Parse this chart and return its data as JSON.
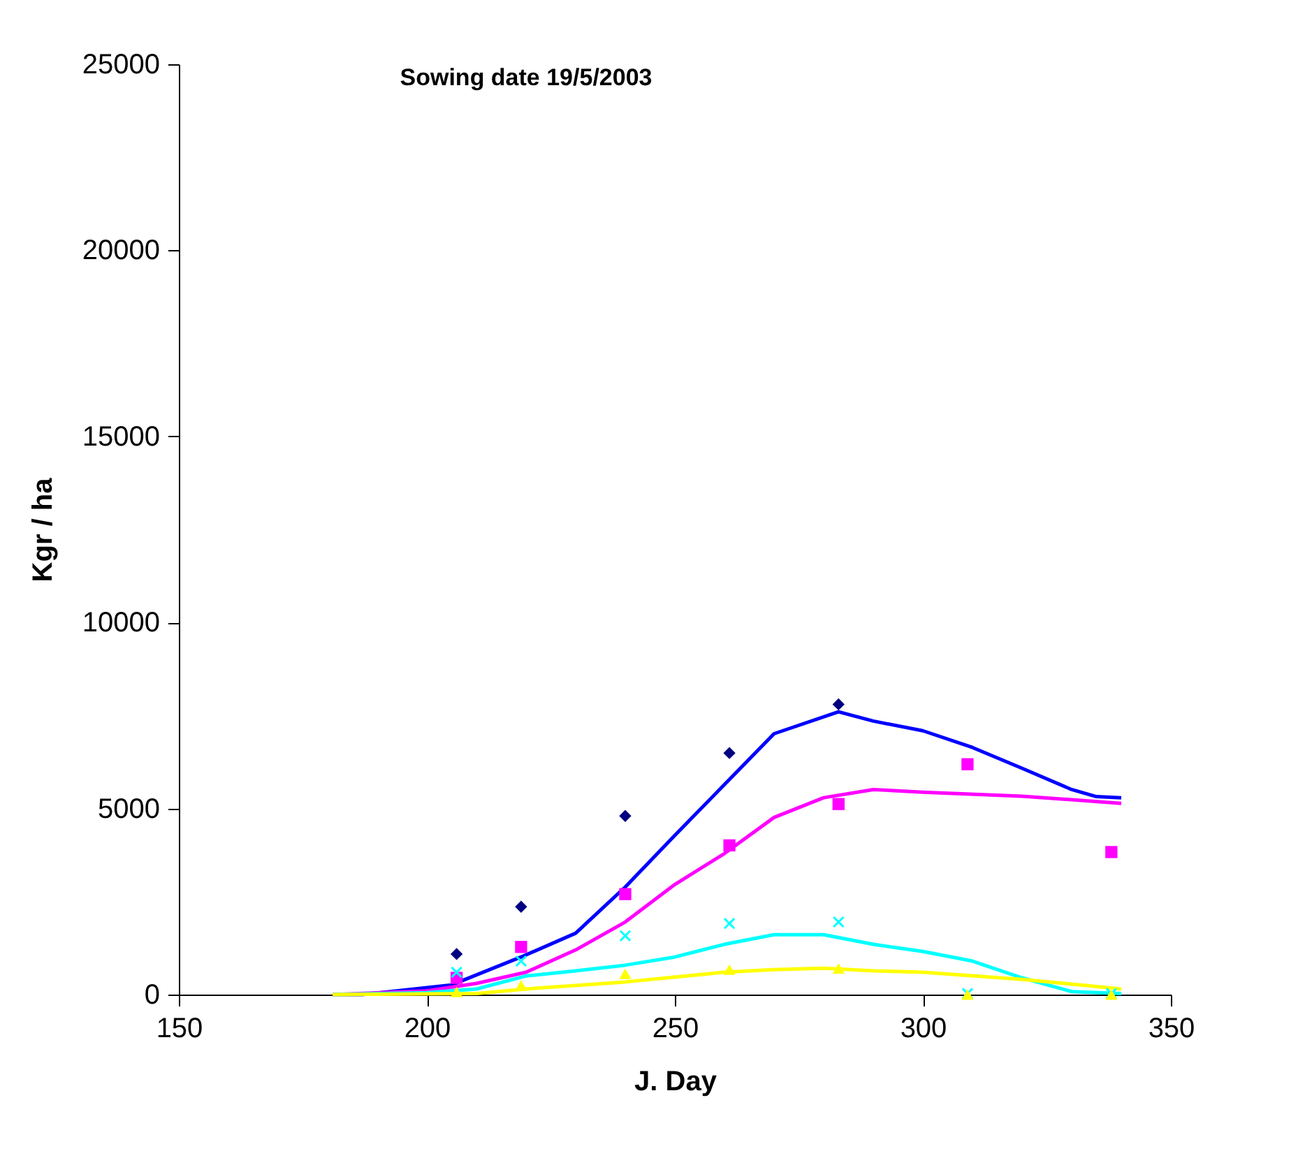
{
  "chart_data": {
    "type": "scatter",
    "title": "Sowing date 19/5/2003",
    "xlabel": "J. Day",
    "ylabel": "Kgr / ha",
    "xlim": [
      150,
      350
    ],
    "xticks": [
      150,
      200,
      250,
      300,
      350
    ],
    "ylim": [
      0,
      25000
    ],
    "yticks": [
      0,
      5000,
      10000,
      15000,
      20000,
      25000
    ],
    "grid": false,
    "series": [
      {
        "type": "line",
        "color": "#0000ff",
        "line_style": "solid",
        "marker": "none",
        "x": [
          181,
          187,
          205,
          219,
          230,
          240,
          250,
          261,
          270,
          283,
          290,
          300,
          310,
          320,
          330,
          335,
          340
        ],
        "values": [
          0,
          0,
          260,
          1010,
          1650,
          2890,
          4280,
          5780,
          7010,
          7600,
          7350,
          7090,
          6640,
          6080,
          5510,
          5320,
          5290
        ]
      },
      {
        "type": "line",
        "color": "#ff00ff",
        "line_style": "solid",
        "marker": "none",
        "x": [
          181,
          200,
          210,
          220,
          230,
          240,
          250,
          260,
          270,
          280,
          290,
          300,
          320,
          340
        ],
        "values": [
          0,
          100,
          300,
          600,
          1200,
          1950,
          2960,
          3790,
          4760,
          5290,
          5510,
          5440,
          5330,
          5140
        ]
      },
      {
        "type": "line",
        "color": "#00ffff",
        "line_style": "solid",
        "marker": "none",
        "x": [
          181,
          200,
          210,
          220,
          230,
          240,
          250,
          260,
          270,
          280,
          290,
          300,
          310,
          320,
          330,
          340
        ],
        "values": [
          0,
          50,
          150,
          500,
          640,
          790,
          1010,
          1350,
          1610,
          1610,
          1350,
          1160,
          900,
          450,
          80,
          30
        ]
      },
      {
        "type": "line",
        "color": "#ffff00",
        "line_style": "solid",
        "marker": "none",
        "x": [
          181,
          210,
          220,
          240,
          260,
          270,
          280,
          290,
          300,
          320,
          340
        ],
        "values": [
          0,
          30,
          150,
          340,
          600,
          670,
          710,
          640,
          600,
          410,
          150
        ]
      },
      {
        "color": "#000080",
        "marker": "diamond",
        "x": [
          206,
          219,
          240,
          261,
          283
        ],
        "values": [
          1090,
          2360,
          4800,
          6490,
          7800
        ]
      },
      {
        "color": "#ff00ff",
        "marker": "square",
        "x": [
          206,
          219,
          240,
          261,
          283,
          309,
          338
        ],
        "values": [
          450,
          1280,
          2700,
          4010,
          5120,
          6190,
          3830
        ]
      },
      {
        "color": "#00ffff",
        "marker": "cross",
        "x": [
          206,
          219,
          240,
          261,
          283,
          309,
          338
        ],
        "values": [
          600,
          900,
          1580,
          1910,
          1950,
          30,
          30
        ]
      },
      {
        "color": "#ffff00",
        "marker": "triangle",
        "x": [
          206,
          219,
          240,
          261,
          283,
          309,
          338
        ],
        "values": [
          70,
          250,
          560,
          670,
          700,
          0,
          0
        ]
      }
    ]
  }
}
